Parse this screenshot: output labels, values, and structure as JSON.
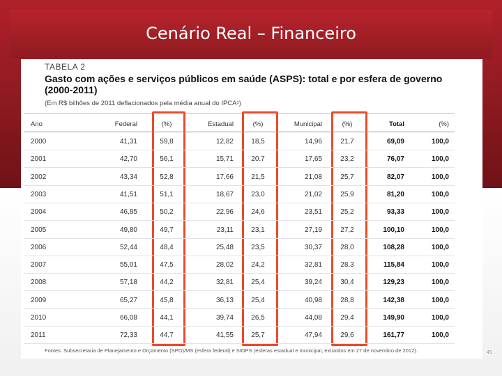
{
  "slide": {
    "title": "Cenário Real – Financeiro",
    "corner_mark": "45"
  },
  "table": {
    "label": "TABELA 2",
    "title": "Gasto com ações e serviços públicos em saúde (ASPS): total e por esfera de governo (2000-2011)",
    "subtitle": "(Em R$ bilhões de 2011 deflacionados pela média anual do IPCA¹)",
    "headers": [
      "Ano",
      "Federal",
      "(%)",
      "Estadual",
      "(%)",
      "Municipal",
      "(%)",
      "Total",
      "(%)"
    ],
    "rows": [
      [
        "2000",
        "41,31",
        "59,8",
        "12,82",
        "18,5",
        "14,96",
        "21,7",
        "69,09",
        "100,0"
      ],
      [
        "2001",
        "42,70",
        "56,1",
        "15,71",
        "20,7",
        "17,65",
        "23,2",
        "76,07",
        "100,0"
      ],
      [
        "2002",
        "43,34",
        "52,8",
        "17,66",
        "21,5",
        "21,08",
        "25,7",
        "82,07",
        "100,0"
      ],
      [
        "2003",
        "41,51",
        "51,1",
        "18,67",
        "23,0",
        "21,02",
        "25,9",
        "81,20",
        "100,0"
      ],
      [
        "2004",
        "46,85",
        "50,2",
        "22,96",
        "24,6",
        "23,51",
        "25,2",
        "93,33",
        "100,0"
      ],
      [
        "2005",
        "49,80",
        "49,7",
        "23,11",
        "23,1",
        "27,19",
        "27,2",
        "100,10",
        "100,0"
      ],
      [
        "2006",
        "52,44",
        "48,4",
        "25,48",
        "23,5",
        "30,37",
        "28,0",
        "108,28",
        "100,0"
      ],
      [
        "2007",
        "55,01",
        "47,5",
        "28,02",
        "24,2",
        "32,81",
        "28,3",
        "115,84",
        "100,0"
      ],
      [
        "2008",
        "57,18",
        "44,2",
        "32,81",
        "25,4",
        "39,24",
        "30,4",
        "129,23",
        "100,0"
      ],
      [
        "2009",
        "65,27",
        "45,8",
        "36,13",
        "25,4",
        "40,98",
        "28,8",
        "142,38",
        "100,0"
      ],
      [
        "2010",
        "66,08",
        "44,1",
        "39,74",
        "26,5",
        "44,08",
        "29,4",
        "149,90",
        "100,0"
      ],
      [
        "2011",
        "72,33",
        "44,7",
        "41,55",
        "25,7",
        "47,94",
        "29,6",
        "161,77",
        "100,0"
      ]
    ],
    "source": "Fontes: Subsecretaria de Planejamento e Orçamento (SPO)/MS (esfera federal) e SIOPS (esferas estadual e municipal, extraídos em 27 de novembro de 2012)."
  }
}
